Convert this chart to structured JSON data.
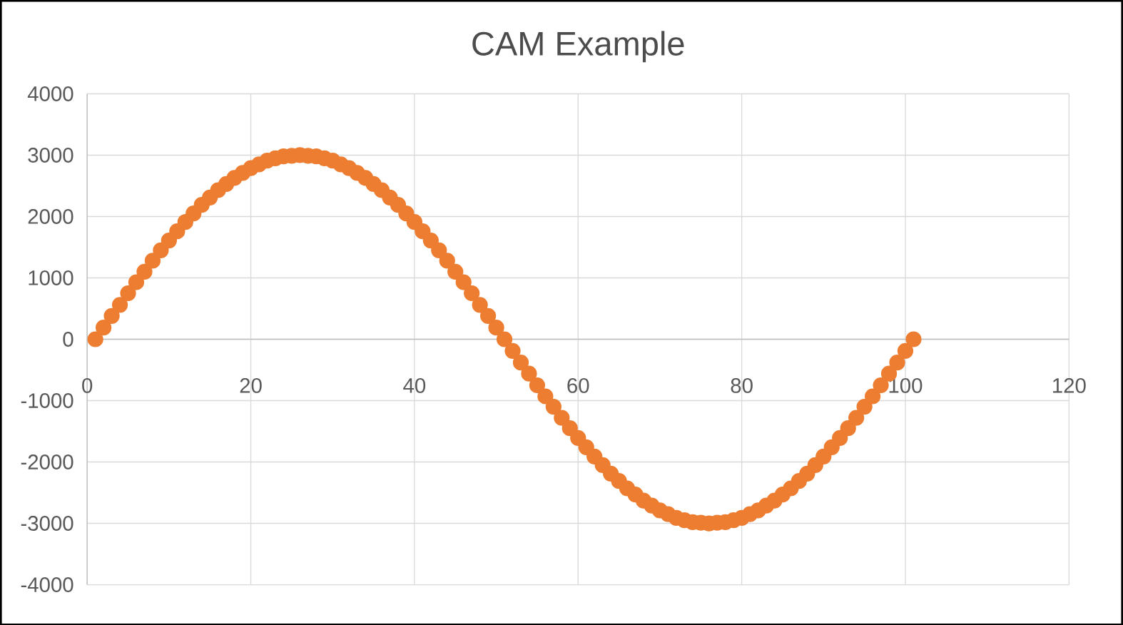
{
  "chart_data": {
    "type": "scatter",
    "title": "CAM Example",
    "marker": "circle",
    "grid": true,
    "xlim": [
      0,
      120
    ],
    "xticks": [
      0,
      20,
      40,
      60,
      80,
      100,
      120
    ],
    "ylim": [
      -4000,
      4000
    ],
    "yticks": [
      -4000,
      -3000,
      -2000,
      -1000,
      0,
      1000,
      2000,
      3000,
      4000
    ],
    "series": [
      {
        "color": "#ed7d31",
        "x": [
          1,
          2,
          3,
          4,
          5,
          6,
          7,
          8,
          9,
          10,
          11,
          12,
          13,
          14,
          15,
          16,
          17,
          18,
          19,
          20,
          21,
          22,
          23,
          24,
          25,
          26,
          27,
          28,
          29,
          30,
          31,
          32,
          33,
          34,
          35,
          36,
          37,
          38,
          39,
          40,
          41,
          42,
          43,
          44,
          45,
          46,
          47,
          48,
          49,
          50,
          51,
          52,
          53,
          54,
          55,
          56,
          57,
          58,
          59,
          60,
          61,
          62,
          63,
          64,
          65,
          66,
          67,
          68,
          69,
          70,
          71,
          72,
          73,
          74,
          75,
          76,
          77,
          78,
          79,
          80,
          81,
          82,
          83,
          84,
          85,
          86,
          87,
          88,
          89,
          90,
          91,
          92,
          93,
          94,
          95,
          96,
          97,
          98,
          99,
          100,
          101
        ],
        "values": [
          0,
          190,
          380,
          560,
          750,
          930,
          1100,
          1280,
          1450,
          1610,
          1760,
          1910,
          2050,
          2190,
          2310,
          2430,
          2530,
          2630,
          2710,
          2790,
          2850,
          2910,
          2950,
          2980,
          2990,
          3000,
          2990,
          2980,
          2950,
          2910,
          2850,
          2790,
          2710,
          2630,
          2530,
          2430,
          2310,
          2190,
          2050,
          1910,
          1760,
          1610,
          1450,
          1280,
          1100,
          930,
          750,
          560,
          380,
          190,
          0,
          -190,
          -380,
          -560,
          -750,
          -930,
          -1100,
          -1280,
          -1450,
          -1610,
          -1760,
          -1910,
          -2050,
          -2190,
          -2310,
          -2430,
          -2530,
          -2630,
          -2710,
          -2790,
          -2850,
          -2910,
          -2950,
          -2980,
          -2990,
          -3000,
          -2990,
          -2980,
          -2950,
          -2910,
          -2850,
          -2790,
          -2710,
          -2630,
          -2530,
          -2430,
          -2310,
          -2190,
          -2050,
          -1910,
          -1760,
          -1610,
          -1450,
          -1280,
          -1100,
          -930,
          -750,
          -560,
          -380,
          -190,
          0
        ]
      }
    ]
  }
}
